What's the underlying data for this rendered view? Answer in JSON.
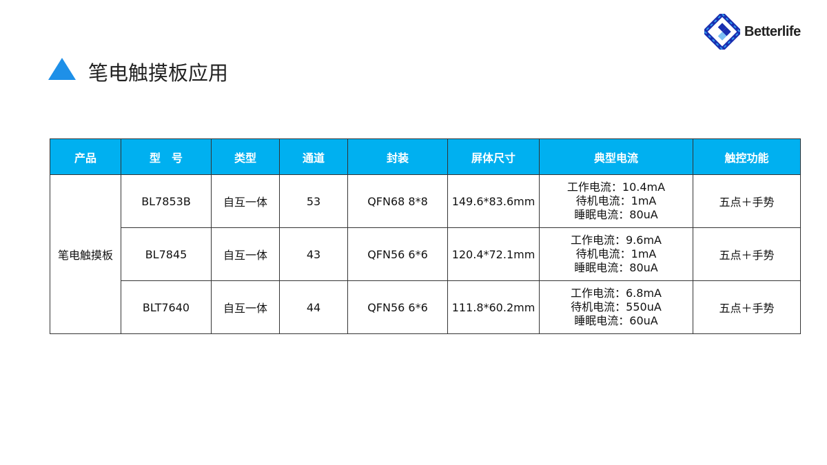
{
  "title": "笔电触摸板应用",
  "logo": {
    "text": "Betterlife",
    "colors": {
      "dark": "#1A2FB0",
      "light": "#2E9BF0"
    }
  },
  "header_color": "#00B0F0",
  "table": {
    "headers": [
      "产品",
      "型　号",
      "类型",
      "通道",
      "封装",
      "屏体尺寸",
      "典型电流",
      "触控功能"
    ],
    "product": "笔电触摸板",
    "rows": [
      {
        "model": "BL7853B",
        "type": "自互一体",
        "channels": "53",
        "package": "QFN68 8*8",
        "size": "149.6*83.6mm",
        "current": [
          "工作电流：10.4mA",
          "待机电流：1mA",
          "睡眠电流：80uA"
        ],
        "function": "五点＋手势"
      },
      {
        "model": "BL7845",
        "type": "自互一体",
        "channels": "43",
        "package": "QFN56 6*6",
        "size": "120.4*72.1mm",
        "current": [
          "工作电流：9.6mA",
          "待机电流：1mA",
          "睡眠电流：80uA"
        ],
        "function": "五点＋手势"
      },
      {
        "model": "BLT7640",
        "type": "自互一体",
        "channels": "44",
        "package": "QFN56 6*6",
        "size": "111.8*60.2mm",
        "current": [
          "工作电流：6.8mA",
          "待机电流：550uA",
          "睡眠电流：60uA"
        ],
        "function": "五点＋手势"
      }
    ]
  }
}
